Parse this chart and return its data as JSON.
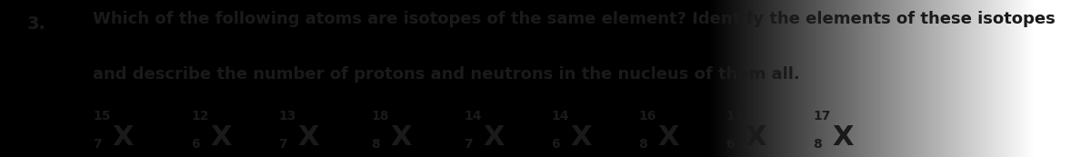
{
  "background_color": "#c8c4bc",
  "background_right": "#e8e4dc",
  "question_number": "3.",
  "line1": "Which of the following atoms are isotopes of the same element? Identify the elements of these isotopes",
  "line2": "and describe the number of protons and neutrons in the nucleus of them all.",
  "atoms": [
    {
      "mass": "15",
      "atomic": "7",
      "symbol": "X"
    },
    {
      "mass": "12",
      "atomic": "6",
      "symbol": "X"
    },
    {
      "mass": "13",
      "atomic": "7",
      "symbol": "X"
    },
    {
      "mass": "18",
      "atomic": "8",
      "symbol": "X"
    },
    {
      "mass": "14",
      "atomic": "7",
      "symbol": "X"
    },
    {
      "mass": "14",
      "atomic": "6",
      "symbol": "X"
    },
    {
      "mass": "16",
      "atomic": "8",
      "symbol": "X"
    },
    {
      "mass": "13",
      "atomic": "6",
      "symbol": "X"
    },
    {
      "mass": "17",
      "atomic": "8",
      "symbol": "X"
    }
  ],
  "text_color": "#1a1a1a",
  "fontsize_main": 13.0,
  "fontsize_symbol": 22,
  "fontsize_super": 10,
  "fontsize_atomic": 10,
  "fontsize_qnum": 14
}
